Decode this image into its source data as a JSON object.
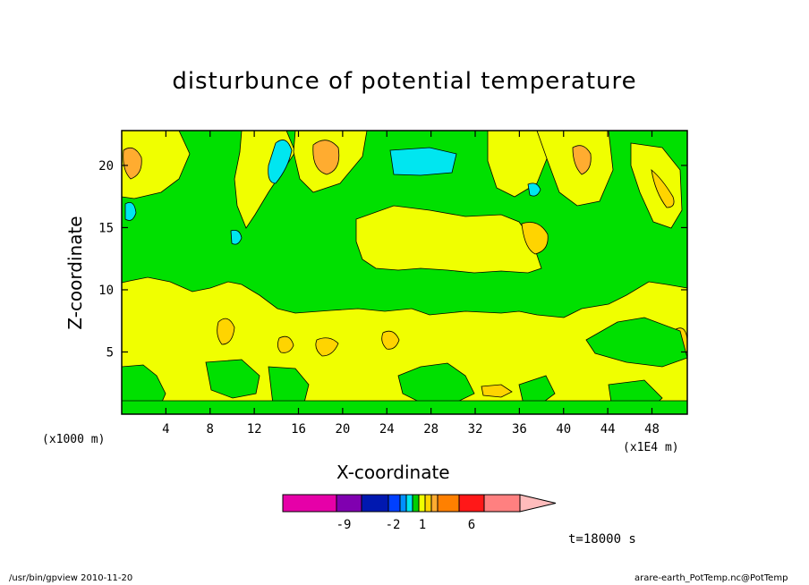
{
  "chart_data": {
    "type": "contour",
    "title": "disturbunce of potential temperature",
    "xlabel": "X-coordinate",
    "ylabel": "Z-coordinate",
    "x_unit_left": "(x1000 m)",
    "x_unit_right": "(x1E4 m)",
    "xlim": [
      0,
      51.2
    ],
    "ylim": [
      0,
      22.8
    ],
    "xticks": [
      4,
      8,
      12,
      16,
      20,
      24,
      28,
      32,
      36,
      40,
      44,
      48
    ],
    "yticks": [
      5,
      10,
      15,
      20
    ],
    "colors": {
      "level_0_1": "#00e000",
      "level_1_2": "#f0ff00",
      "level_2_3": "#ffd400",
      "level_3_4": "#ffac30",
      "level_neg": "#00e6f0"
    },
    "colorbar": {
      "labels": [
        "-9",
        "-2",
        "1",
        "6"
      ],
      "colors": [
        "#e600a8",
        "#8000b0",
        "#0018b0",
        "#0040ff",
        "#0090ff",
        "#00e6f0",
        "#00d000",
        "#f0ff00",
        "#ffd400",
        "#ffac30",
        "#ff8000",
        "#ff1818",
        "#ff8080",
        "#ffbcbc"
      ]
    },
    "time_label": "t=18000 s"
  },
  "footer": {
    "left": "/usr/bin/gpview  2010-11-20",
    "right": "arare-earth_PotTemp.nc@PotTemp"
  }
}
